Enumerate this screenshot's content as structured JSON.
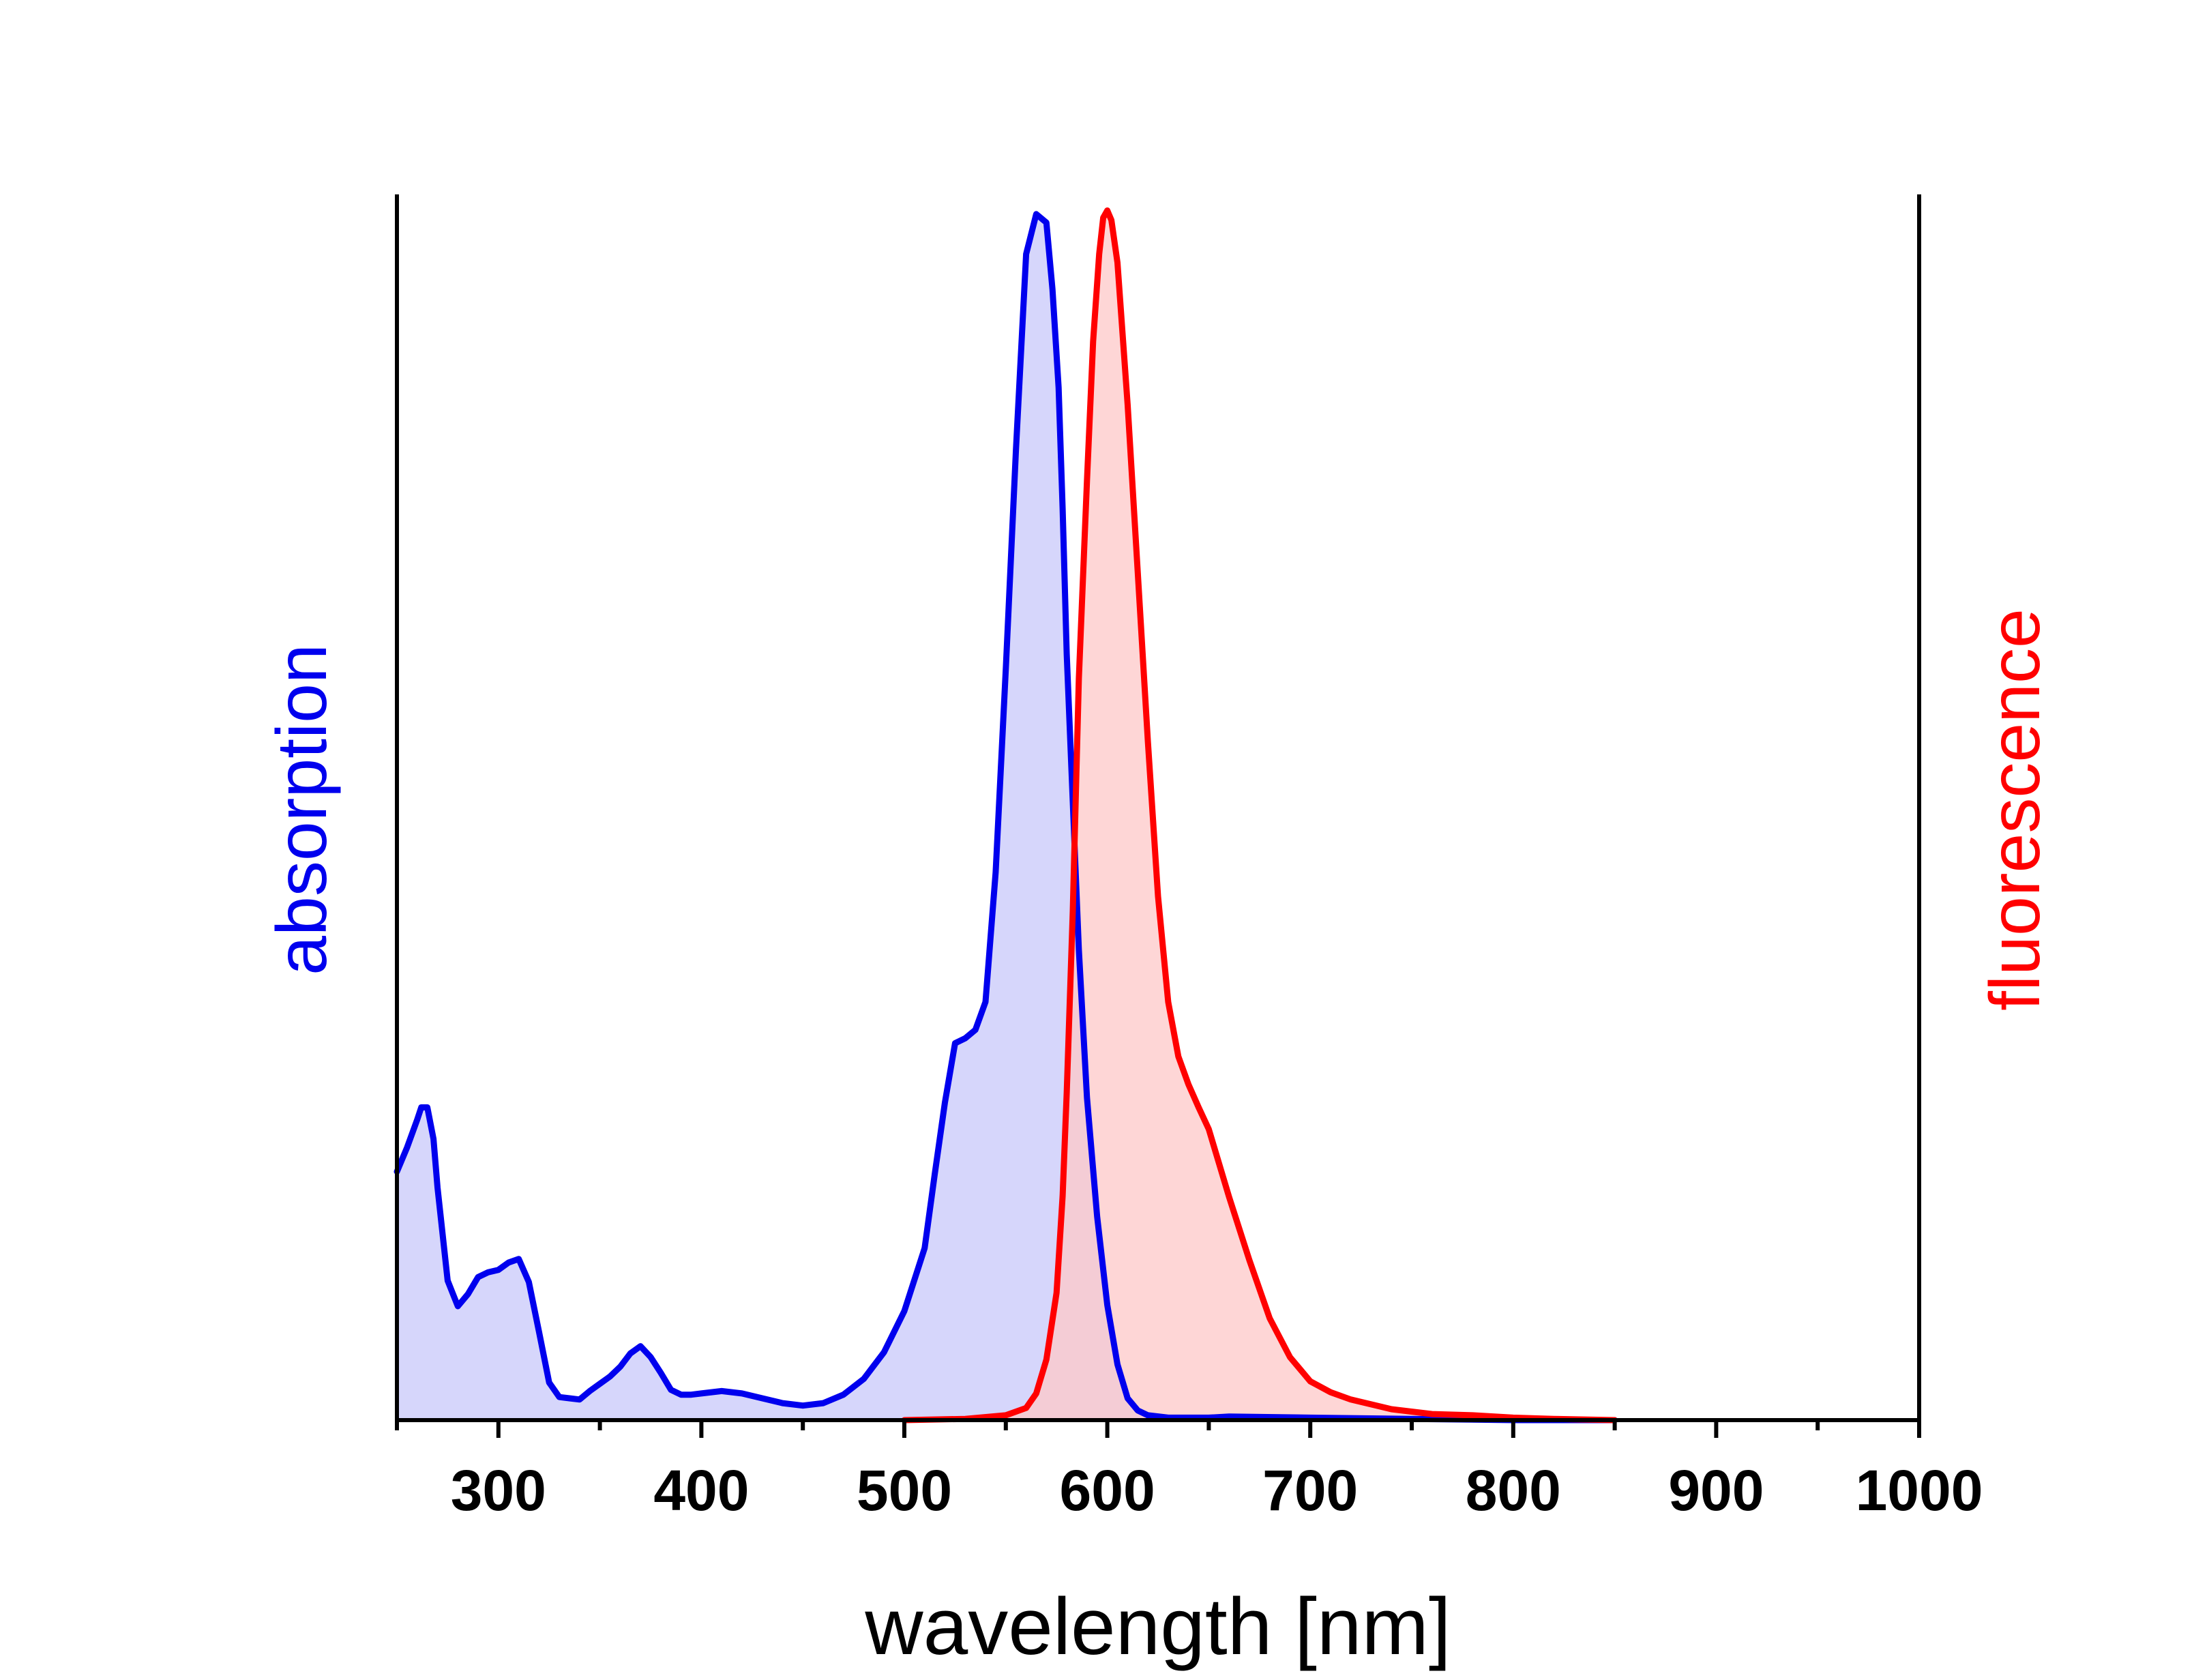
{
  "chart_data": {
    "type": "area",
    "xlabel": "wavelength [nm]",
    "ylabel_left": "absorption",
    "ylabel_right": "fluorescence",
    "xlim": [
      250,
      1000
    ],
    "ylim": [
      0,
      1
    ],
    "x_ticks_major": [
      300,
      400,
      500,
      600,
      700,
      800,
      900,
      1000
    ],
    "x_tick_labels": [
      "300",
      "400",
      "500",
      "600",
      "700",
      "800",
      "900",
      "1000"
    ],
    "x_ticks_minor": [
      250,
      350,
      450,
      550,
      650,
      750,
      850,
      950
    ],
    "grid": false,
    "legend": "none",
    "series": [
      {
        "label_axis": "left",
        "color": "#0000ee",
        "fill": "#c8c8fa",
        "x": [
          250,
          255,
          260,
          262,
          265,
          268,
          270,
          275,
          280,
          285,
          290,
          295,
          300,
          305,
          310,
          315,
          320,
          325,
          330,
          335,
          340,
          345,
          350,
          355,
          360,
          365,
          370,
          375,
          380,
          385,
          390,
          395,
          400,
          410,
          420,
          430,
          440,
          450,
          460,
          470,
          480,
          490,
          500,
          510,
          515,
          520,
          525,
          530,
          535,
          540,
          545,
          550,
          555,
          560,
          565,
          570,
          573,
          576,
          578,
          580,
          583,
          586,
          590,
          595,
          600,
          605,
          610,
          615,
          620,
          630,
          640,
          650,
          660,
          700,
          750,
          800,
          850
        ],
        "y": [
          0.205,
          0.225,
          0.248,
          0.258,
          0.258,
          0.232,
          0.192,
          0.115,
          0.094,
          0.104,
          0.118,
          0.122,
          0.124,
          0.13,
          0.133,
          0.114,
          0.073,
          0.031,
          0.019,
          0.018,
          0.017,
          0.024,
          0.03,
          0.036,
          0.044,
          0.055,
          0.061,
          0.052,
          0.039,
          0.025,
          0.021,
          0.021,
          0.022,
          0.024,
          0.022,
          0.018,
          0.014,
          0.012,
          0.014,
          0.021,
          0.034,
          0.056,
          0.09,
          0.142,
          0.203,
          0.262,
          0.311,
          0.315,
          0.322,
          0.345,
          0.452,
          0.62,
          0.801,
          0.962,
          0.995,
          0.988,
          0.933,
          0.852,
          0.752,
          0.632,
          0.51,
          0.388,
          0.266,
          0.168,
          0.095,
          0.046,
          0.018,
          0.008,
          0.004,
          0.002,
          0.002,
          0.002,
          0.003,
          0.002,
          0.001,
          0.0,
          0.0
        ]
      },
      {
        "label_axis": "right",
        "color": "#ff0000",
        "fill": "#fec8c8",
        "x": [
          500,
          530,
          550,
          560,
          565,
          570,
          575,
          578,
          580,
          583,
          586,
          590,
          593,
          596,
          598,
          600,
          602,
          605,
          610,
          615,
          620,
          625,
          630,
          635,
          640,
          645,
          650,
          660,
          670,
          680,
          690,
          700,
          710,
          720,
          740,
          760,
          780,
          800,
          820,
          850
        ],
        "y": [
          0.0,
          0.001,
          0.004,
          0.01,
          0.022,
          0.05,
          0.105,
          0.185,
          0.27,
          0.42,
          0.612,
          0.775,
          0.89,
          0.962,
          0.992,
          0.998,
          0.99,
          0.955,
          0.838,
          0.7,
          0.56,
          0.432,
          0.345,
          0.3,
          0.277,
          0.258,
          0.24,
          0.184,
          0.132,
          0.084,
          0.052,
          0.032,
          0.023,
          0.017,
          0.009,
          0.005,
          0.004,
          0.002,
          0.001,
          0.0
        ]
      }
    ]
  }
}
